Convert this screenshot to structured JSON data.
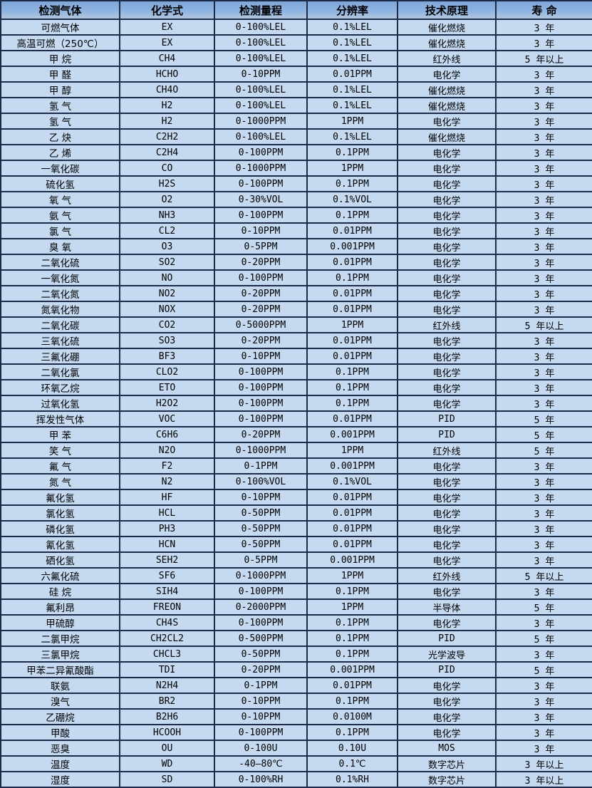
{
  "colors": {
    "header_bg": "#8db4e2",
    "row_bg": "#c5d9f1",
    "border": "#1c2b49",
    "text": "#000000"
  },
  "table": {
    "headers": [
      "检测气体",
      "化学式",
      "检测量程",
      "分辨率",
      "技术原理",
      "寿 命"
    ],
    "rows": [
      [
        "可燃气体",
        "EX",
        "0-100%LEL",
        "0.1%LEL",
        "催化燃烧",
        "3 年"
      ],
      [
        "高温可燃（250℃）",
        "EX",
        "0-100%LEL",
        "0.1%LEL",
        "催化燃烧",
        "3 年"
      ],
      [
        "甲 烷",
        "CH4",
        "0-100%LEL",
        "0.1%LEL",
        "红外线",
        "5 年以上"
      ],
      [
        "甲 醛",
        "HCHO",
        "0-10PPM",
        "0.01PPM",
        "电化学",
        "3 年"
      ],
      [
        "甲 醇",
        "CH4O",
        "0-100%LEL",
        "0.1%LEL",
        "催化燃烧",
        "3 年"
      ],
      [
        "氢 气",
        "H2",
        "0-100%LEL",
        "0.1%LEL",
        "催化燃烧",
        "3 年"
      ],
      [
        "氢 气",
        "H2",
        "0-1000PPM",
        "1PPM",
        "电化学",
        "3 年"
      ],
      [
        "乙 炔",
        "C2H2",
        "0-100%LEL",
        "0.1%LEL",
        "催化燃烧",
        "3 年"
      ],
      [
        "乙 烯",
        "C2H4",
        "0-100PPM",
        "0.1PPM",
        "电化学",
        "3 年"
      ],
      [
        "一氧化碳",
        "CO",
        "0-1000PPM",
        "1PPM",
        "电化学",
        "3 年"
      ],
      [
        "硫化氢",
        "H2S",
        "0-100PPM",
        "0.1PPM",
        "电化学",
        "3 年"
      ],
      [
        "氧 气",
        "O2",
        "0-30%VOL",
        "0.1%VOL",
        "电化学",
        "3 年"
      ],
      [
        "氨 气",
        "NH3",
        "0-100PPM",
        "0.1PPM",
        "电化学",
        "3 年"
      ],
      [
        "氯 气",
        "CL2",
        "0-10PPM",
        "0.01PPM",
        "电化学",
        "3 年"
      ],
      [
        "臭 氧",
        "O3",
        "0-5PPM",
        "0.001PPM",
        "电化学",
        "3 年"
      ],
      [
        "二氧化硫",
        "SO2",
        "0-20PPM",
        "0.01PPM",
        "电化学",
        "3 年"
      ],
      [
        "一氧化氮",
        "NO",
        "0-100PPM",
        "0.1PPM",
        "电化学",
        "3 年"
      ],
      [
        "二氧化氮",
        "NO2",
        "0-20PPM",
        "0.01PPM",
        "电化学",
        "3 年"
      ],
      [
        "氮氧化物",
        "NOX",
        "0-20PPM",
        "0.01PPM",
        "电化学",
        "3 年"
      ],
      [
        "二氧化碳",
        "CO2",
        "0-5000PPM",
        "1PPM",
        "红外线",
        "5 年以上"
      ],
      [
        "三氧化硫",
        "SO3",
        "0-20PPM",
        "0.01PPM",
        "电化学",
        "3 年"
      ],
      [
        "三氟化硼",
        "BF3",
        "0-10PPM",
        "0.01PPM",
        "电化学",
        "3 年"
      ],
      [
        "二氧化氯",
        "CLO2",
        "0-100PPM",
        "0.1PPM",
        "电化学",
        "3 年"
      ],
      [
        "环氧乙烷",
        "ETO",
        "0-100PPM",
        "0.1PPM",
        "电化学",
        "3 年"
      ],
      [
        "过氧化氢",
        "H2O2",
        "0-100PPM",
        "0.1PPM",
        "电化学",
        "3 年"
      ],
      [
        "挥发性气体",
        "VOC",
        "0-100PPM",
        "0.01PPM",
        "PID",
        "5 年"
      ],
      [
        "甲 苯",
        "C6H6",
        "0-20PPM",
        "0.001PPM",
        "PID",
        "5 年"
      ],
      [
        "笑 气",
        "N2O",
        "0-1000PPM",
        "1PPM",
        "红外线",
        "5 年"
      ],
      [
        "氟 气",
        "F2",
        "0-1PPM",
        "0.001PPM",
        "电化学",
        "3 年"
      ],
      [
        "氮 气",
        "N2",
        "0-100%VOL",
        "0.1%VOL",
        "电化学",
        "3 年"
      ],
      [
        "氟化氢",
        "HF",
        "0-10PPM",
        "0.01PPM",
        "电化学",
        "3 年"
      ],
      [
        "氯化氢",
        "HCL",
        "0-50PPM",
        "0.01PPM",
        "电化学",
        "3 年"
      ],
      [
        "磷化氢",
        "PH3",
        "0-50PPM",
        "0.01PPM",
        "电化学",
        "3 年"
      ],
      [
        "氰化氢",
        "HCN",
        "0-50PPM",
        "0.01PPM",
        "电化学",
        "3 年"
      ],
      [
        "硒化氢",
        "SEH2",
        "0-5PPM",
        "0.001PPM",
        "电化学",
        "3 年"
      ],
      [
        "六氟化硫",
        "SF6",
        "0-1000PPM",
        "1PPM",
        "红外线",
        "5 年以上"
      ],
      [
        "硅 烷",
        "SIH4",
        "0-100PPM",
        "0.1PPM",
        "电化学",
        "3 年"
      ],
      [
        "氟利昂",
        "FREON",
        "0-2000PPM",
        "1PPM",
        "半导体",
        "5 年"
      ],
      [
        "甲硫醇",
        "CH4S",
        "0-100PPM",
        "0.1PPM",
        "电化学",
        "3 年"
      ],
      [
        "二氯甲烷",
        "CH2CL2",
        "0-500PPM",
        "0.1PPM",
        "PID",
        "5 年"
      ],
      [
        "三氯甲烷",
        "CHCL3",
        "0-50PPM",
        "0.1PPM",
        "光学波导",
        "3 年"
      ],
      [
        "甲苯二异氰酸酯",
        "TDI",
        "0-20PPM",
        "0.001PPM",
        "PID",
        "5 年"
      ],
      [
        "联氨",
        "N2H4",
        "0-1PPM",
        "0.01PPM",
        "电化学",
        "3 年"
      ],
      [
        "溴气",
        "BR2",
        "0-10PPM",
        "0.1PPM",
        "电化学",
        "3 年"
      ],
      [
        "乙硼烷",
        "B2H6",
        "0-10PPM",
        "0.0100M",
        "电化学",
        "3 年"
      ],
      [
        "甲酸",
        "HCOOH",
        "0-100PPM",
        "0.1PPM",
        "电化学",
        "3 年"
      ],
      [
        "恶臭",
        "OU",
        "0-100U",
        "0.10U",
        "MOS",
        "3 年"
      ],
      [
        "温度",
        "WD",
        "-40—80℃",
        "0.1℃",
        "数字芯片",
        "3 年以上"
      ],
      [
        "湿度",
        "SD",
        "0-100%RH",
        "0.1%RH",
        "数字芯片",
        "3 年以上"
      ]
    ]
  }
}
